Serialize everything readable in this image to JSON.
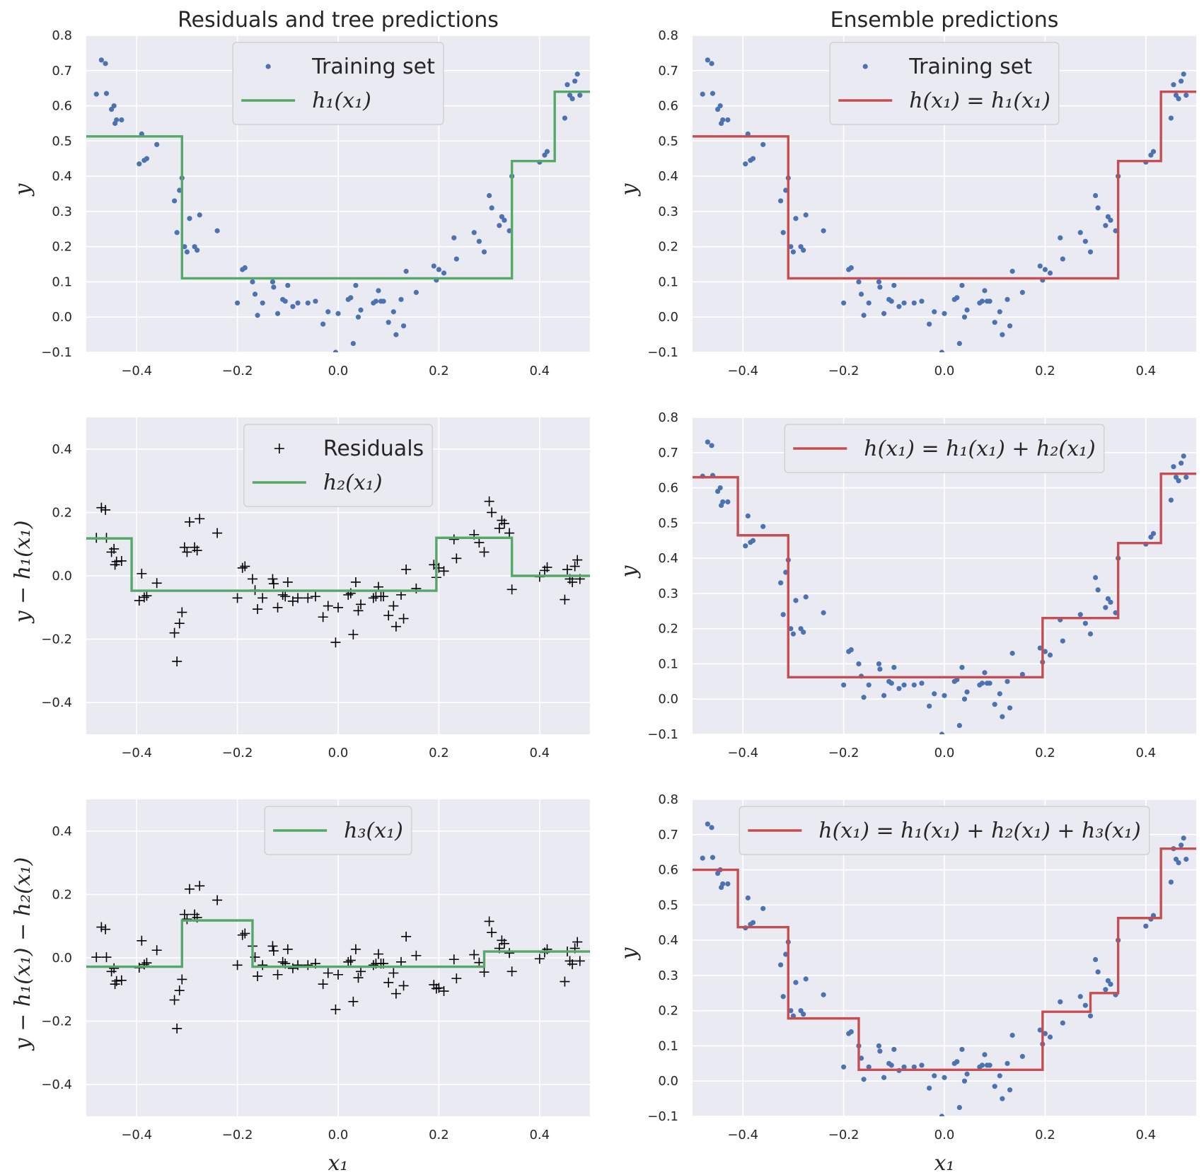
{
  "chart_data": [
    {
      "panel": "top-left",
      "type": "scatter",
      "title": "Residuals and tree predictions",
      "xlabel": "",
      "ylabel": "y",
      "ylabel_style": "math",
      "xlim": [
        -0.5,
        0.5
      ],
      "ylim": [
        -0.1,
        0.8
      ],
      "xticks": [
        "−0.4",
        "−0.2",
        "0.0",
        "0.2",
        "0.4"
      ],
      "yticks": [
        "−0.1",
        "0.0",
        "0.1",
        "0.2",
        "0.3",
        "0.4",
        "0.5",
        "0.6",
        "0.7",
        "0.8"
      ],
      "grid": true,
      "legend": {
        "placement": "upper center",
        "entries": [
          {
            "label": "Training set",
            "kind": "dot",
            "math": false
          },
          {
            "label": "h₁(x₁)",
            "kind": "line",
            "math": true
          }
        ]
      },
      "scatter": {
        "name": "Training set",
        "marker": "dot",
        "source": "points_y"
      },
      "steps": [
        {
          "name": "h₁(x₁)",
          "x": [
            -0.5,
            -0.31,
            -0.31,
            0.345,
            0.345,
            0.43,
            0.43,
            0.5
          ],
          "y": [
            0.513,
            0.513,
            0.11,
            0.11,
            0.443,
            0.443,
            0.64,
            0.64
          ]
        }
      ]
    },
    {
      "panel": "top-right",
      "type": "scatter",
      "title": "Ensemble predictions",
      "xlabel": "",
      "ylabel": "y",
      "ylabel_style": "math",
      "xlim": [
        -0.5,
        0.5
      ],
      "ylim": [
        -0.1,
        0.8
      ],
      "xticks": [
        "−0.4",
        "−0.2",
        "0.0",
        "0.2",
        "0.4"
      ],
      "yticks": [
        "−0.1",
        "0.0",
        "0.1",
        "0.2",
        "0.3",
        "0.4",
        "0.5",
        "0.6",
        "0.7",
        "0.8"
      ],
      "grid": true,
      "legend": {
        "placement": "upper center",
        "entries": [
          {
            "label": "Training set",
            "kind": "dot",
            "math": false
          },
          {
            "label": "h(x₁) = h₁(x₁)",
            "kind": "line",
            "math": true
          }
        ]
      },
      "scatter": {
        "name": "Training set",
        "marker": "dot",
        "source": "points_y"
      },
      "steps": [
        {
          "name": "h(x₁) = h₁(x₁)",
          "x": [
            -0.5,
            -0.31,
            -0.31,
            0.345,
            0.345,
            0.43,
            0.43,
            0.5
          ],
          "y": [
            0.513,
            0.513,
            0.11,
            0.11,
            0.443,
            0.443,
            0.64,
            0.64
          ]
        }
      ]
    },
    {
      "panel": "middle-left",
      "type": "scatter",
      "title": "",
      "xlabel": "",
      "ylabel": "y − h₁(x₁)",
      "ylabel_style": "math",
      "xlim": [
        -0.5,
        0.5
      ],
      "ylim": [
        -0.5,
        0.5
      ],
      "xticks": [
        "−0.4",
        "−0.2",
        "0.0",
        "0.2",
        "0.4"
      ],
      "yticks": [
        "−0.4",
        "−0.2",
        "0.0",
        "0.2",
        "0.4"
      ],
      "grid": true,
      "legend": {
        "placement": "upper center",
        "entries": [
          {
            "label": "Residuals",
            "kind": "plus",
            "math": false
          },
          {
            "label": "h₂(x₁)",
            "kind": "line",
            "math": true
          }
        ]
      },
      "scatter": {
        "name": "Residuals",
        "marker": "plus",
        "source": "residuals_1"
      },
      "steps": [
        {
          "name": "h₂(x₁)",
          "x": [
            -0.5,
            -0.41,
            -0.41,
            0.195,
            0.195,
            0.345,
            0.345,
            0.5
          ],
          "y": [
            0.118,
            0.118,
            -0.047,
            -0.047,
            0.12,
            0.12,
            0.0,
            0.0
          ]
        }
      ]
    },
    {
      "panel": "middle-right",
      "type": "scatter",
      "title": "",
      "xlabel": "",
      "ylabel": "y",
      "ylabel_style": "math",
      "xlim": [
        -0.5,
        0.5
      ],
      "ylim": [
        -0.1,
        0.8
      ],
      "xticks": [
        "−0.4",
        "−0.2",
        "0.0",
        "0.2",
        "0.4"
      ],
      "yticks": [
        "−0.1",
        "0.0",
        "0.1",
        "0.2",
        "0.3",
        "0.4",
        "0.5",
        "0.6",
        "0.7",
        "0.8"
      ],
      "grid": true,
      "legend": {
        "placement": "upper center",
        "entries": [
          {
            "label": "h(x₁) = h₁(x₁) + h₂(x₁)",
            "kind": "line",
            "math": true
          }
        ]
      },
      "scatter": {
        "name": "",
        "marker": "dot",
        "source": "points_y"
      },
      "steps": [
        {
          "name": "h(x₁) = h₁(x₁) + h₂(x₁)",
          "x": [
            -0.5,
            -0.41,
            -0.41,
            -0.31,
            -0.31,
            0.195,
            0.195,
            0.345,
            0.345,
            0.43,
            0.43,
            0.5
          ],
          "y": [
            0.63,
            0.63,
            0.465,
            0.465,
            0.062,
            0.062,
            0.23,
            0.23,
            0.443,
            0.443,
            0.64,
            0.64
          ]
        }
      ]
    },
    {
      "panel": "bottom-left",
      "type": "scatter",
      "title": "",
      "xlabel": "x₁",
      "ylabel": "y − h₁(x₁) − h₂(x₁)",
      "ylabel_style": "math",
      "xlim": [
        -0.5,
        0.5
      ],
      "ylim": [
        -0.5,
        0.5
      ],
      "xticks": [
        "−0.4",
        "−0.2",
        "0.0",
        "0.2",
        "0.4"
      ],
      "yticks": [
        "−0.4",
        "−0.2",
        "0.0",
        "0.2",
        "0.4"
      ],
      "grid": true,
      "legend": {
        "placement": "upper center",
        "entries": [
          {
            "label": "h₃(x₁)",
            "kind": "line",
            "math": true
          }
        ]
      },
      "scatter": {
        "name": "",
        "marker": "plus",
        "source": "residuals_2"
      },
      "steps": [
        {
          "name": "h₃(x₁)",
          "x": [
            -0.5,
            -0.31,
            -0.31,
            -0.17,
            -0.17,
            0.29,
            0.29,
            0.5
          ],
          "y": [
            -0.028,
            -0.028,
            0.118,
            0.118,
            -0.028,
            -0.028,
            0.02,
            0.02
          ]
        }
      ]
    },
    {
      "panel": "bottom-right",
      "type": "scatter",
      "title": "",
      "xlabel": "x₁",
      "ylabel": "y",
      "ylabel_style": "math",
      "xlim": [
        -0.5,
        0.5
      ],
      "ylim": [
        -0.1,
        0.8
      ],
      "xticks": [
        "−0.4",
        "−0.2",
        "0.0",
        "0.2",
        "0.4"
      ],
      "yticks": [
        "−0.1",
        "0.0",
        "0.1",
        "0.2",
        "0.3",
        "0.4",
        "0.5",
        "0.6",
        "0.7",
        "0.8"
      ],
      "grid": true,
      "legend": {
        "placement": "upper center",
        "entries": [
          {
            "label": "h(x₁) = h₁(x₁) + h₂(x₁) + h₃(x₁)",
            "kind": "line",
            "math": true
          }
        ]
      },
      "scatter": {
        "name": "",
        "marker": "dot",
        "source": "points_y"
      },
      "steps": [
        {
          "name": "h(x₁) = h₁(x₁) + h₂(x₁) + h₃(x₁)",
          "x": [
            -0.5,
            -0.41,
            -0.41,
            -0.31,
            -0.31,
            -0.17,
            -0.17,
            0.195,
            0.195,
            0.29,
            0.29,
            0.345,
            0.345,
            0.43,
            0.43,
            0.5
          ],
          "y": [
            0.6,
            0.6,
            0.437,
            0.437,
            0.178,
            0.178,
            0.032,
            0.032,
            0.197,
            0.197,
            0.25,
            0.25,
            0.463,
            0.463,
            0.66,
            0.66
          ]
        }
      ]
    }
  ],
  "points_x": [
    -0.48,
    -0.47,
    -0.462,
    -0.46,
    -0.45,
    -0.445,
    -0.443,
    -0.44,
    -0.43,
    -0.395,
    -0.39,
    -0.385,
    -0.38,
    -0.36,
    -0.325,
    -0.32,
    -0.315,
    -0.31,
    -0.305,
    -0.3,
    -0.295,
    -0.285,
    -0.28,
    -0.275,
    -0.24,
    -0.2,
    -0.19,
    -0.185,
    -0.17,
    -0.165,
    -0.16,
    -0.15,
    -0.13,
    -0.128,
    -0.12,
    -0.11,
    -0.105,
    -0.1,
    -0.09,
    -0.08,
    -0.06,
    -0.045,
    -0.03,
    -0.02,
    -0.005,
    0.0,
    0.02,
    0.025,
    0.03,
    0.035,
    0.04,
    0.045,
    0.07,
    0.075,
    0.08,
    0.085,
    0.09,
    0.1,
    0.11,
    0.115,
    0.125,
    0.13,
    0.135,
    0.155,
    0.19,
    0.195,
    0.2,
    0.21,
    0.23,
    0.235,
    0.27,
    0.28,
    0.29,
    0.3,
    0.305,
    0.32,
    0.325,
    0.33,
    0.34,
    0.345,
    0.4,
    0.41,
    0.415,
    0.45,
    0.455,
    0.46,
    0.465,
    0.47,
    0.475,
    0.48
  ],
  "points_y": [
    0.633,
    0.73,
    0.72,
    0.635,
    0.59,
    0.6,
    0.55,
    0.56,
    0.56,
    0.435,
    0.52,
    0.445,
    0.45,
    0.49,
    0.33,
    0.24,
    0.36,
    0.395,
    0.2,
    0.185,
    0.28,
    0.2,
    0.19,
    0.29,
    0.245,
    0.04,
    0.135,
    0.14,
    0.1,
    0.065,
    0.005,
    0.04,
    0.1,
    0.085,
    0.01,
    0.05,
    0.045,
    0.09,
    0.03,
    0.04,
    0.04,
    0.045,
    -0.02,
    0.015,
    -0.1,
    0.01,
    0.05,
    0.055,
    -0.075,
    0.09,
    0.0,
    0.02,
    0.04,
    0.045,
    0.075,
    0.045,
    0.045,
    -0.015,
    0.015,
    -0.05,
    0.05,
    -0.025,
    0.13,
    0.07,
    0.145,
    0.105,
    0.135,
    0.125,
    0.225,
    0.165,
    0.24,
    0.215,
    0.185,
    0.345,
    0.31,
    0.26,
    0.285,
    0.275,
    0.245,
    0.4,
    0.44,
    0.46,
    0.47,
    0.565,
    0.66,
    0.63,
    0.62,
    0.67,
    0.69,
    0.63
  ],
  "residuals_1": [
    0.12,
    0.215,
    0.208,
    0.12,
    0.075,
    0.085,
    0.035,
    0.045,
    0.047,
    -0.078,
    0.007,
    -0.068,
    -0.063,
    -0.023,
    -0.18,
    -0.27,
    -0.15,
    -0.115,
    0.09,
    0.075,
    0.17,
    0.09,
    0.08,
    0.18,
    0.135,
    -0.07,
    0.025,
    0.03,
    -0.01,
    -0.045,
    -0.105,
    -0.07,
    -0.01,
    -0.025,
    -0.1,
    -0.06,
    -0.065,
    -0.02,
    -0.08,
    -0.07,
    -0.07,
    -0.065,
    -0.13,
    -0.095,
    -0.21,
    -0.1,
    -0.06,
    -0.055,
    -0.185,
    -0.02,
    -0.11,
    -0.09,
    -0.07,
    -0.065,
    -0.035,
    -0.065,
    -0.065,
    -0.125,
    -0.095,
    -0.16,
    -0.06,
    -0.135,
    0.02,
    -0.04,
    0.035,
    -0.005,
    0.025,
    0.015,
    0.115,
    0.055,
    0.13,
    0.105,
    0.075,
    0.235,
    0.2,
    0.15,
    0.175,
    0.165,
    0.135,
    -0.043,
    -0.003,
    0.017,
    0.027,
    -0.075,
    0.02,
    -0.01,
    -0.02,
    0.03,
    0.05,
    -0.01
  ],
  "residuals_2": [
    0.002,
    0.097,
    0.09,
    0.002,
    -0.043,
    -0.033,
    -0.083,
    -0.073,
    -0.071,
    -0.031,
    0.054,
    -0.021,
    -0.016,
    0.024,
    -0.133,
    -0.223,
    -0.103,
    -0.068,
    0.137,
    0.122,
    0.217,
    0.137,
    0.127,
    0.227,
    0.182,
    -0.023,
    0.072,
    0.077,
    0.037,
    0.002,
    -0.058,
    -0.023,
    0.037,
    0.022,
    -0.053,
    -0.013,
    -0.018,
    0.027,
    -0.033,
    -0.023,
    -0.023,
    -0.018,
    -0.083,
    -0.048,
    -0.163,
    -0.053,
    -0.013,
    -0.008,
    -0.138,
    0.027,
    -0.063,
    -0.043,
    -0.023,
    -0.018,
    0.012,
    -0.018,
    -0.018,
    -0.078,
    -0.048,
    -0.113,
    -0.013,
    -0.088,
    0.067,
    0.007,
    -0.085,
    -0.097,
    -0.095,
    -0.105,
    -0.005,
    -0.065,
    0.01,
    -0.015,
    -0.045,
    0.115,
    0.08,
    0.03,
    0.055,
    0.045,
    0.015,
    -0.043,
    -0.003,
    0.017,
    0.027,
    -0.075,
    0.02,
    -0.01,
    -0.02,
    0.03,
    0.05,
    -0.01
  ],
  "colors": {
    "points": "#4c72b0",
    "marker_plus": "#000000",
    "tree_line": "#55a868",
    "ensemble_line": "#c44e52",
    "plot_bg": "#eaeaf2",
    "grid": "#ffffff"
  }
}
